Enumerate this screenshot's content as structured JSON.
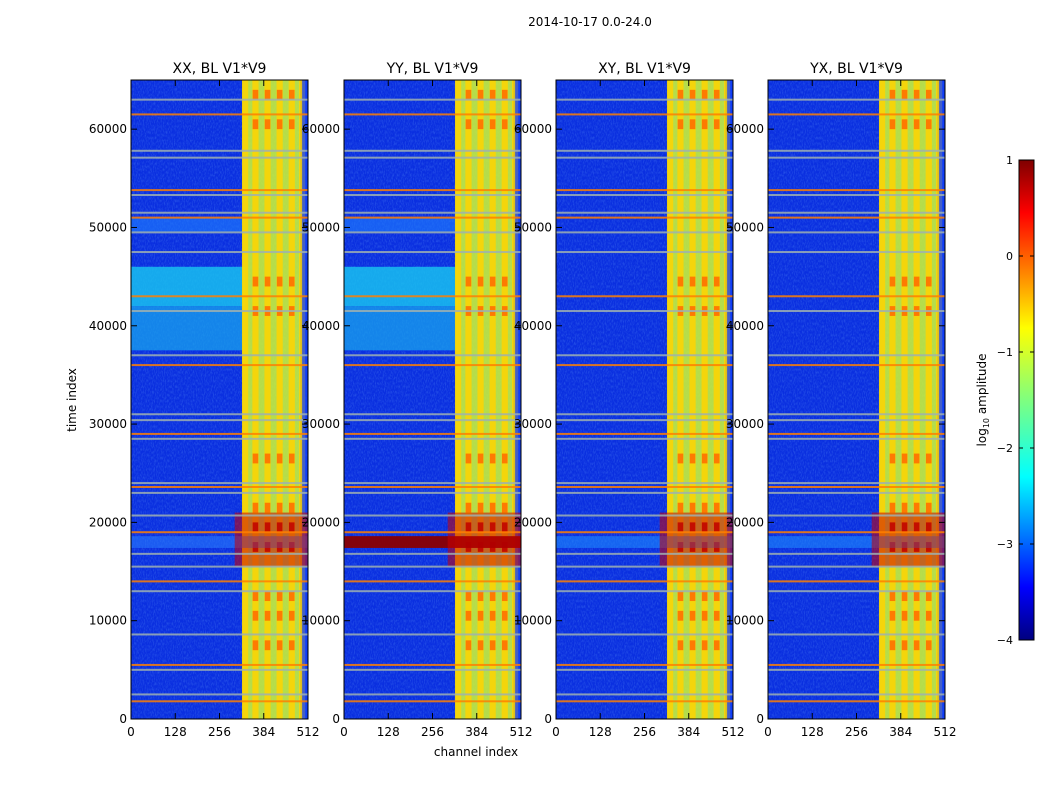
{
  "chart_data": {
    "type": "heatmap",
    "suptitle": "2014-10-17 0.0-24.0",
    "xlabel": "channel index",
    "ylabel": "time index",
    "xlim": [
      0,
      512
    ],
    "ylim": [
      0,
      65000
    ],
    "xticks": [
      0,
      128,
      256,
      384,
      512
    ],
    "yticks": [
      0,
      10000,
      20000,
      30000,
      40000,
      50000,
      60000
    ],
    "colorbar": {
      "label": "log10 amplitude",
      "label_base": "log",
      "label_sub": "10",
      "label_rest": " amplitude",
      "range": [
        -4,
        1
      ],
      "ticks": [
        1,
        0,
        -1,
        -2,
        -3,
        -4
      ],
      "tick_labels": [
        "1",
        "0",
        "−1",
        "−2",
        "−3",
        "−4"
      ],
      "colormap": "jet"
    },
    "panels": [
      {
        "title": "XX, BL V1*V9",
        "pol": "XX",
        "band_18k": "moderate",
        "band_43k": "cyan-wide"
      },
      {
        "title": "YY, BL V1*V9",
        "pol": "YY",
        "band_18k": "strong",
        "band_43k": "cyan-wide"
      },
      {
        "title": "XY, BL V1*V9",
        "pol": "XY",
        "band_18k": "weak",
        "band_43k": "none"
      },
      {
        "title": "YX, BL V1*V9",
        "pol": "YX",
        "band_18k": "weak",
        "band_43k": "none"
      }
    ],
    "rfi_time_rows": [
      1800,
      2500,
      5000,
      5500,
      8600,
      13000,
      14000,
      15500,
      16800,
      19000,
      20700,
      23000,
      23600,
      24000,
      28500,
      29000,
      30400,
      31000,
      36000,
      37000,
      41500,
      43000,
      47500,
      49500,
      51000,
      51500,
      53300,
      53800,
      57100,
      57800,
      61500,
      63000
    ],
    "strong_channels": [
      330,
      360,
      395,
      430,
      465,
      495
    ]
  }
}
